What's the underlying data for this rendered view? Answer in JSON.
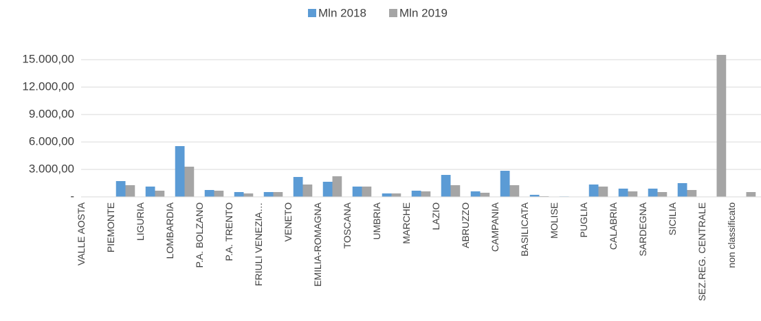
{
  "chart_data": {
    "type": "bar",
    "categories": [
      "VALLE AOSTA",
      "PIEMONTE",
      "LIGURIA",
      "LOMBARDIA",
      "P.A. BOLZANO",
      "P.A. TRENTO",
      "FRIULI VENEZIA…",
      "VENETO",
      "EMILIA-ROMAGNA",
      "TOSCANA",
      "UMBRIA",
      "MARCHE",
      "LAZIO",
      "ABRUZZO",
      "CAMPANIA",
      "BASILICATA",
      "MOLISE",
      "PUGLIA",
      "CALABRIA",
      "SARDEGNA",
      "SICILIA",
      "SEZ.REG. CENTRALE",
      "non classificato"
    ],
    "series": [
      {
        "name": "Mln 2018",
        "color": "#5b9bd5",
        "values": [
          30,
          1725,
          1125,
          5550,
          750,
          525,
          525,
          2175,
          1650,
          1125,
          375,
          675,
          2400,
          600,
          2850,
          225,
          50,
          1350,
          900,
          900,
          1500,
          0,
          0
        ]
      },
      {
        "name": "Mln 2019",
        "color": "#a5a5a5",
        "values": [
          30,
          1275,
          675,
          3300,
          675,
          375,
          525,
          1350,
          2250,
          1125,
          375,
          600,
          1275,
          450,
          1275,
          75,
          30,
          1125,
          600,
          525,
          750,
          15525,
          525
        ]
      }
    ],
    "ylim": [
      0,
      16500
    ],
    "yticks": [
      {
        "value": 0,
        "label": "-"
      },
      {
        "value": 3000,
        "label": "3.000,00"
      },
      {
        "value": 6000,
        "label": "6.000,00"
      },
      {
        "value": 9000,
        "label": "9.000,00"
      },
      {
        "value": 12000,
        "label": "12.000,00"
      },
      {
        "value": 15000,
        "label": "15.000,00"
      }
    ],
    "grid": true,
    "legend": "top"
  }
}
